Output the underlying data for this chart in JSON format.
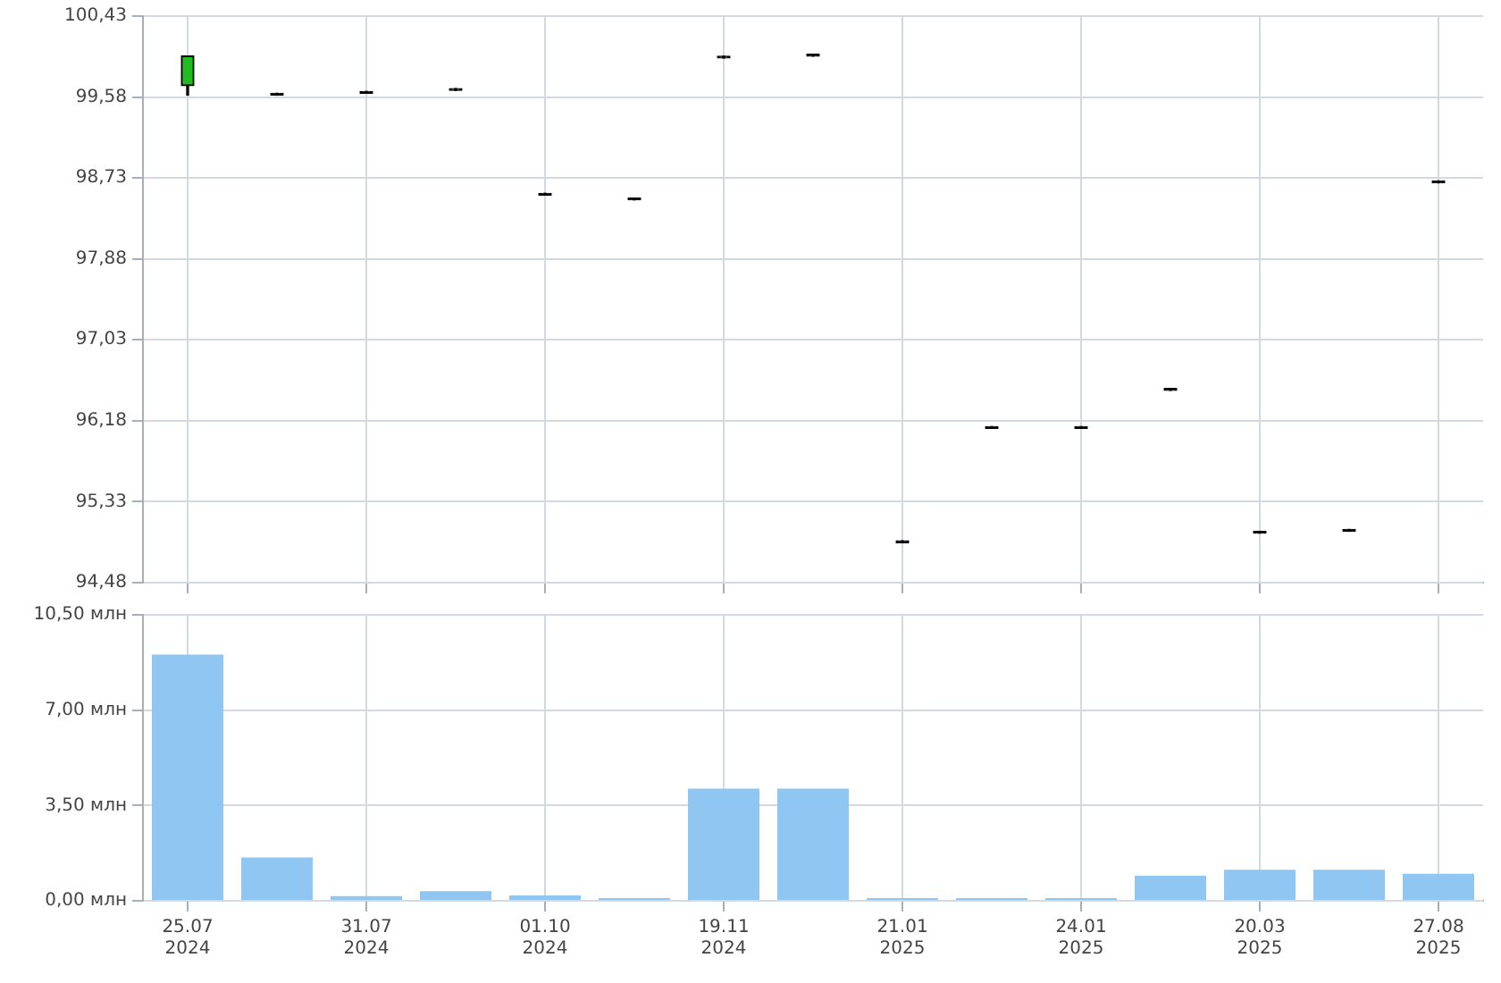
{
  "chart_data": [
    {
      "type": "candlestick",
      "categories": [
        null,
        null,
        null,
        null,
        null,
        null,
        null,
        null,
        null,
        null,
        null,
        null,
        null,
        null,
        null
      ],
      "ohlc": [
        [
          99.7,
          100.01,
          99.6,
          100.01
        ],
        [
          99.6,
          99.6,
          99.6,
          99.6
        ],
        [
          99.62,
          99.62,
          99.62,
          99.62
        ],
        [
          99.65,
          99.65,
          99.65,
          99.65
        ],
        [
          98.55,
          98.55,
          98.55,
          98.55
        ],
        [
          98.5,
          98.5,
          98.5,
          98.5
        ],
        [
          99.99,
          99.99,
          99.99,
          99.99
        ],
        [
          100.01,
          100.01,
          100.01,
          100.01
        ],
        [
          94.9,
          94.9,
          94.9,
          94.9
        ],
        [
          96.1,
          96.1,
          96.1,
          96.1
        ],
        [
          96.1,
          96.1,
          96.1,
          96.1
        ],
        [
          96.5,
          96.5,
          96.5,
          96.5
        ],
        [
          95.0,
          95.0,
          95.0,
          95.0
        ],
        [
          95.02,
          95.02,
          95.02,
          95.02
        ],
        [
          98.68,
          98.68,
          98.68,
          98.68
        ]
      ],
      "ylim": [
        94.48,
        100.43
      ],
      "yticks": [
        {
          "value": 94.48,
          "label": "94,48"
        },
        {
          "value": 95.33,
          "label": "95,33"
        },
        {
          "value": 96.18,
          "label": "96,18"
        },
        {
          "value": 97.03,
          "label": "97,03"
        },
        {
          "value": 97.88,
          "label": "97,88"
        },
        {
          "value": 98.73,
          "label": "98,73"
        },
        {
          "value": 99.58,
          "label": "99,58"
        },
        {
          "value": 100.43,
          "label": "100,43"
        }
      ],
      "grid": true,
      "legend": false,
      "tick_labels": "y"
    },
    {
      "type": "bar",
      "categories": [
        "25.07\n2024",
        null,
        "31.07\n2024",
        null,
        "01.10\n2024",
        null,
        "19.11\n2024",
        null,
        "21.01\n2025",
        null,
        "24.01\n2025",
        null,
        "20.03\n2025",
        null,
        "27.08\n2025"
      ],
      "values": [
        9.04,
        1.59,
        0.17,
        0.35,
        0.2,
        0.1,
        4.12,
        4.12,
        0.1,
        0.1,
        0.1,
        0.92,
        1.14,
        1.14,
        0.99
      ],
      "color": "#8fc6f2",
      "ylim": [
        0,
        10.5
      ],
      "yticks": [
        {
          "value": 0,
          "label": "0,00 млн"
        },
        {
          "value": 3.5,
          "label": "3,50 млн"
        },
        {
          "value": 7,
          "label": "7,00 млн"
        },
        {
          "value": 10.5,
          "label": "10,50 млн"
        }
      ],
      "grid": true,
      "legend": false
    }
  ]
}
